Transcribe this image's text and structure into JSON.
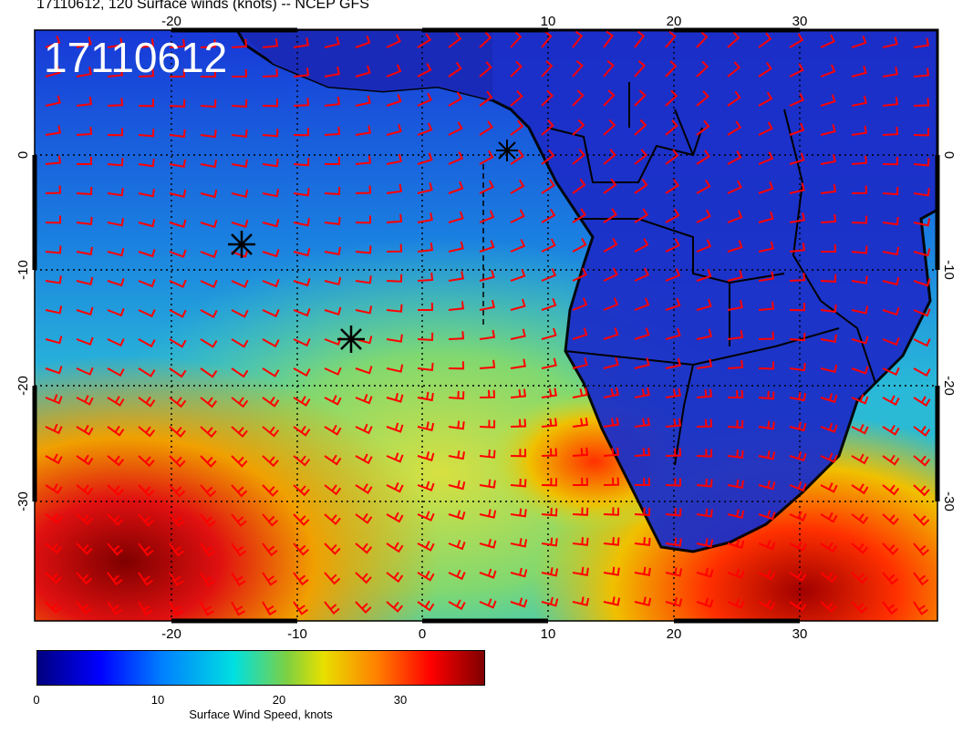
{
  "header": {
    "title": "17110612, 120 Surface winds (knots) -- NCEP GFS"
  },
  "map": {
    "stamp": "17110612",
    "lon_ticks": [
      "-20",
      "-10",
      "0",
      "10",
      "20",
      "30"
    ],
    "lat_ticks": [
      "0",
      "-10",
      "-20",
      "-30"
    ],
    "storm_markers": 3
  },
  "colorbar": {
    "label": "Surface Wind Speed, knots",
    "ticks": [
      "0",
      "10",
      "20",
      "30"
    ],
    "range": [
      0,
      37
    ]
  },
  "colors": {
    "barb": "#ff0000",
    "coast": "#000000"
  }
}
